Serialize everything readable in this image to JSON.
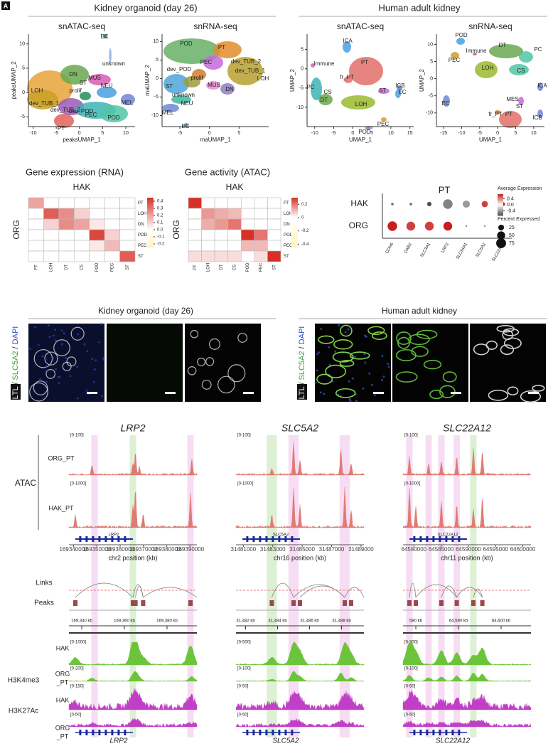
{
  "figure_label": "A",
  "section_titles": {
    "organoid": "Kidney organoid (day 26)",
    "adult": "Human adult kidney"
  },
  "umaps": [
    {
      "title": "snATAC-seq",
      "xlabel": "peaksUMAP_1",
      "ylabel": "peaksUMAP_2",
      "xlim": [
        -11,
        12
      ],
      "ylim": [
        -7,
        12
      ],
      "xticks": [
        -10,
        -5,
        0,
        5,
        10
      ],
      "yticks": [
        -5,
        0,
        5,
        10
      ],
      "clusters": [
        "EC",
        "unknown",
        "DN",
        "MUS",
        "LOH",
        "ST",
        "NEU",
        "dev_TUB_1",
        "dev_TUB_2",
        "prolif",
        "dev_POD",
        "PEC",
        "POD",
        "MEL",
        "PT"
      ]
    },
    {
      "title": "snRNA-seq",
      "xlabel": "rnaUMAP_1",
      "ylabel": "rnaUMAP_2",
      "xlim": [
        -8,
        10
      ],
      "ylim": [
        -13,
        12
      ],
      "xticks": [
        -5,
        0,
        5
      ],
      "yticks": [
        -10,
        -5,
        0,
        5,
        10
      ],
      "clusters": [
        "POD",
        "PT",
        "PEC",
        "dev_TUB_2",
        "dev_POD",
        "dev_TUB_1",
        "prolif",
        "LOH",
        "MUS",
        "ST",
        "DN",
        "unknown",
        "NEU",
        "MEL",
        "EC"
      ]
    },
    {
      "title": "snATAC-seq",
      "xlabel": "UMAP_1",
      "ylabel": "UMAP_2",
      "xlim": [
        -12,
        16
      ],
      "ylim": [
        -15,
        9
      ],
      "xticks": [
        -10,
        -5,
        0,
        5,
        10,
        15
      ],
      "yticks": [
        -10,
        -5,
        0,
        5
      ],
      "clusters": [
        "ICA",
        "Immune",
        "PT",
        "fr_PT",
        "PC",
        "CS",
        "DT",
        "ICB",
        "ST",
        "EC",
        "LOH",
        "PEC",
        "POD"
      ]
    },
    {
      "title": "snRNA-seq",
      "xlabel": "UMAP_1",
      "ylabel": "UMAP_2",
      "xlim": [
        -17,
        13
      ],
      "ylim": [
        -14,
        13
      ],
      "xticks": [
        -15,
        -10,
        -5,
        0,
        5,
        10
      ],
      "yticks": [
        -10,
        -5,
        0,
        5,
        10
      ],
      "clusters": [
        "POD",
        "DT",
        "Immune",
        "PC",
        "PEC",
        "CS",
        "LOH",
        "ICA",
        "MES",
        "ST",
        "EC",
        "fr_PT",
        "PT",
        "ICB"
      ]
    }
  ],
  "heatmaps": [
    {
      "title": "Gene expression (RNA)",
      "subtitle": "HAK",
      "row_axis": "ORG",
      "rows": [
        "PT",
        "LOH",
        "DN",
        "POD",
        "PEC",
        "ST"
      ],
      "cols": [
        "PT",
        "LOH",
        "DT",
        "CS",
        "POD",
        "PEC",
        "ST"
      ],
      "values": [
        [
          0.2,
          0,
          0,
          0,
          0,
          0,
          0
        ],
        [
          0,
          0.35,
          0.25,
          0.1,
          0,
          0,
          0
        ],
        [
          0,
          0.1,
          0.25,
          0.2,
          0.05,
          0,
          0
        ],
        [
          0,
          0,
          0,
          0,
          0.4,
          0.1,
          0
        ],
        [
          0,
          0,
          0,
          0,
          0.05,
          0.15,
          0
        ],
        [
          0,
          0,
          0,
          0,
          0,
          0,
          0.35
        ]
      ],
      "colorbar_lim": [
        -0.25,
        0.45
      ],
      "colorbar_ticks": [
        0.4,
        0.3,
        0.2,
        0.1,
        {
          "value": 0,
          "label": "0.0"
        },
        -0.1,
        -0.2
      ]
    },
    {
      "title": "Gene activity (ATAC)",
      "subtitle": "HAK",
      "row_axis": "ORG",
      "rows": [
        "PT",
        "LOH",
        "DN",
        "POD",
        "PEC",
        "ST"
      ],
      "cols": [
        "PT",
        "LOH",
        "DT",
        "CS",
        "POD",
        "PEC",
        "ST"
      ],
      "values": [
        [
          0.3,
          0,
          0,
          0,
          0,
          0,
          0
        ],
        [
          0,
          0.15,
          0.12,
          0.1,
          0,
          0,
          0
        ],
        [
          0,
          0.12,
          0.15,
          0.2,
          0,
          0,
          0
        ],
        [
          0,
          0,
          0,
          0,
          0.3,
          0.2,
          0
        ],
        [
          0,
          0,
          0,
          0,
          0.1,
          0.1,
          0
        ],
        [
          0.05,
          0.05,
          0.05,
          0.05,
          0,
          0.05,
          0.3
        ]
      ],
      "colorbar_lim": [
        -0.45,
        0.3
      ],
      "colorbar_ticks": [
        0.2,
        0,
        -0.2,
        -0.4
      ]
    }
  ],
  "dotplot": {
    "title": "PT",
    "rows": [
      "HAK",
      "ORG"
    ],
    "genes": [
      "CDH6",
      "DAB2",
      "SLC3A1",
      "LRP2",
      "SLC34A1",
      "SLC5A2",
      "SLC22A12"
    ],
    "avg_expression": [
      [
        -0.6,
        -0.6,
        -0.7,
        -0.5,
        -0.4,
        0.6,
        0.7
      ],
      [
        0.7,
        0.6,
        0.6,
        0.7,
        -0.5,
        -0.5,
        -0.5
      ]
    ],
    "percent_expressed": [
      [
        5,
        5,
        15,
        70,
        40,
        30,
        10
      ],
      [
        70,
        60,
        60,
        60,
        2,
        2,
        2
      ]
    ],
    "color_legend_title": "Average Expression",
    "color_lim": [
      -0.7,
      0.7
    ],
    "color_ticks": [
      0.4,
      {
        "value": 0,
        "label": "0.0"
      },
      -0.4
    ],
    "size_legend_title": "Percent Expressed",
    "size_ticks": [
      25,
      50,
      75
    ]
  },
  "imaging": {
    "organoid_title": "Kidney organoid (day 26)",
    "adult_title": "Human adult kidney",
    "stain_labels": [
      "LTL",
      "SLC5A2",
      "DAPI"
    ],
    "separator": "/"
  },
  "tracks": {
    "genes": [
      "LRP2",
      "SLC5A2",
      "SLC22A12"
    ],
    "assay_atac": "ATAC",
    "samples": [
      "ORG_PT",
      "HAK_PT"
    ],
    "atac_ranges": [
      [
        "[0-100]",
        "[0-1000]"
      ],
      [
        "[0-100]",
        "[0-1000]"
      ],
      [
        "[0-100]",
        "[0-1000]"
      ]
    ],
    "position_labels": [
      "chr2 position (kb)",
      "chr16 position (kb)",
      "chr11 position (kb)"
    ],
    "position_lims": [
      [
        169338000,
        169393000
      ],
      [
        31480500,
        31489200
      ],
      [
        64578000,
        64601500
      ]
    ],
    "position_ticks": [
      [
        169340000,
        169350000,
        169360000,
        169370000,
        169380000,
        169390000
      ],
      [
        31481000,
        31483000,
        31485000,
        31487000,
        31489000
      ],
      [
        64580000,
        64585000,
        64590000,
        64595000,
        64600000
      ]
    ],
    "links_label": "Links",
    "peaks_label": "Peaks",
    "coord_ticks": [
      [
        "169,340 kb",
        "169,360 kb",
        "169,380 kb"
      ],
      [
        "31,482 kb",
        "31,484 kb",
        "31,486 kb",
        "31,488 kb"
      ],
      [
        "580 kb",
        "64,590 kb",
        "64,600 kb"
      ]
    ],
    "h3k4me3": "H3K4me3",
    "h3k27ac": "H3K27Ac",
    "hist_hak": "HAK",
    "hist_org": [
      "ORG",
      "_PT"
    ],
    "h3k4me3_ranges": [
      [
        "[0-1000]",
        "[0-200]"
      ],
      [
        "[0-500]",
        "[0-100]"
      ],
      [
        "[0-300]",
        "[0-100]"
      ]
    ],
    "h3k27ac_ranges": [
      [
        "[0-150]",
        "[0-50]"
      ],
      [
        "[0-50]",
        "[0-50]"
      ],
      [
        "[0-50]",
        "[0-50]"
      ]
    ]
  }
}
